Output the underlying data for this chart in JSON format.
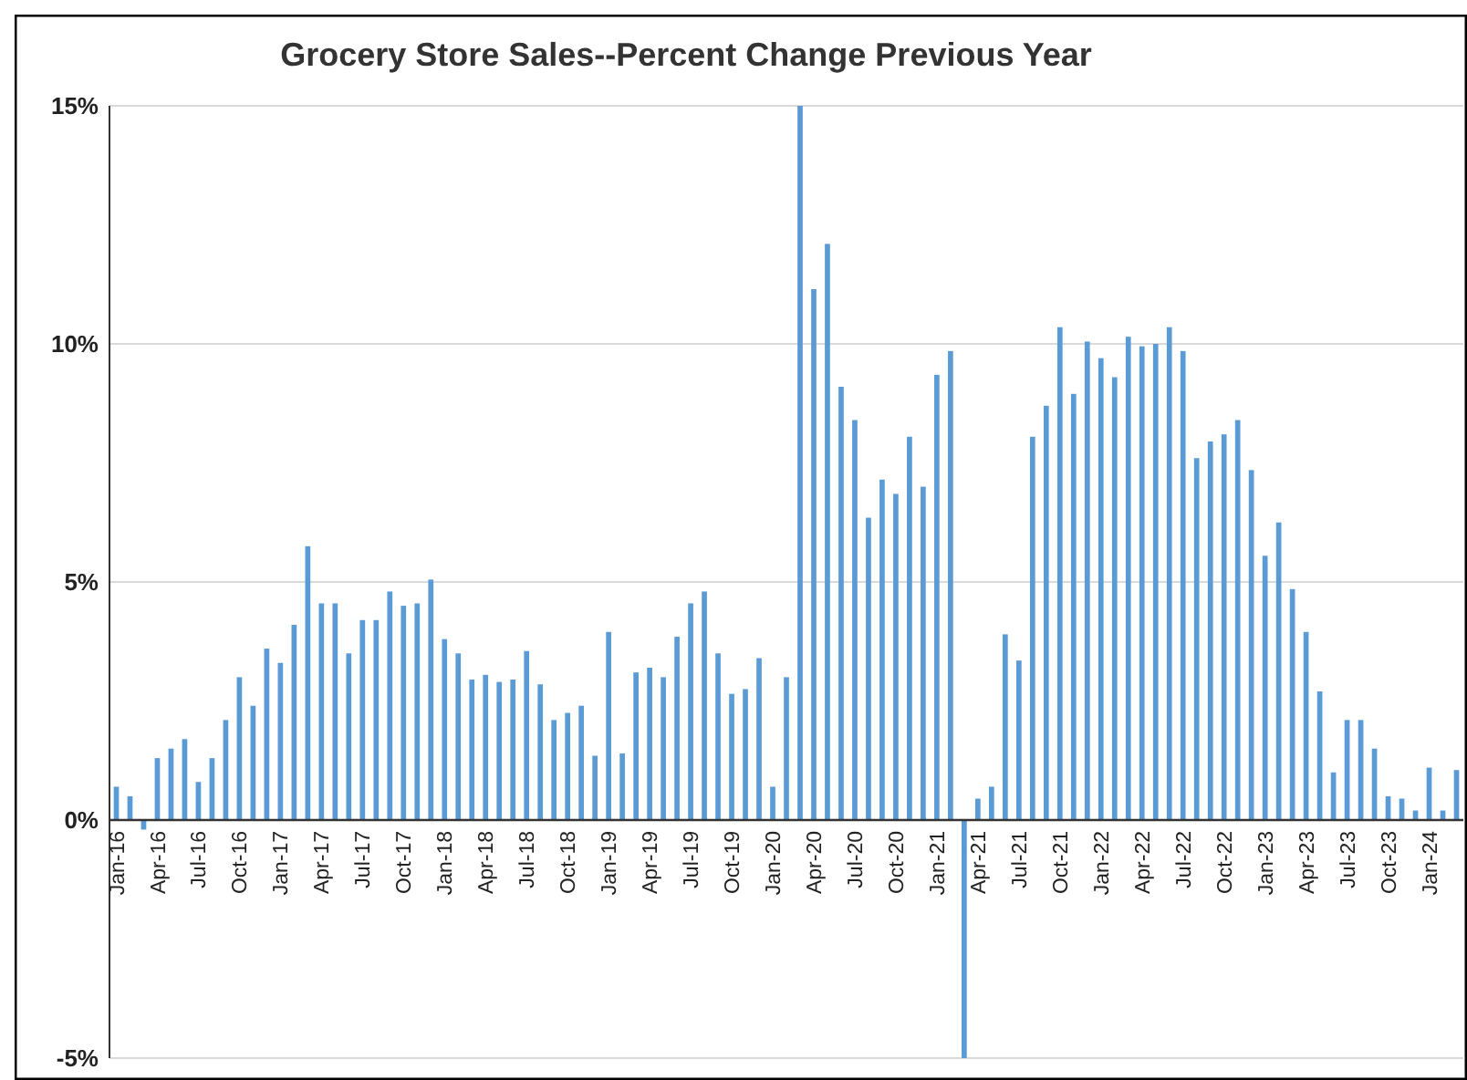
{
  "chart_data": {
    "type": "bar",
    "title": "Grocery Store Sales--Percent Change Previous Year",
    "categories": [
      "Jan-16",
      null,
      null,
      "Apr-16",
      null,
      null,
      "Jul-16",
      null,
      null,
      "Oct-16",
      null,
      null,
      "Jan-17",
      null,
      null,
      "Apr-17",
      null,
      null,
      "Jul-17",
      null,
      null,
      "Oct-17",
      null,
      null,
      "Jan-18",
      null,
      null,
      "Apr-18",
      null,
      null,
      "Jul-18",
      null,
      null,
      "Oct-18",
      null,
      null,
      "Jan-19",
      null,
      null,
      "Apr-19",
      null,
      null,
      "Jul-19",
      null,
      null,
      "Oct-19",
      null,
      null,
      "Jan-20",
      null,
      null,
      "Apr-20",
      null,
      null,
      "Jul-20",
      null,
      null,
      "Oct-20",
      null,
      null,
      "Jan-21",
      null,
      null,
      "Apr-21",
      null,
      null,
      "Jul-21",
      null,
      null,
      "Oct-21",
      null,
      null,
      "Jan-22",
      null,
      null,
      "Apr-22",
      null,
      null,
      "Jul-22",
      null,
      null,
      "Oct-22",
      null,
      null,
      "Jan-23",
      null,
      null,
      "Apr-23",
      null,
      null,
      "Jul-23",
      null,
      null,
      "Oct-23",
      null,
      null,
      "Jan-24",
      null,
      null
    ],
    "values": [
      0.7,
      0.5,
      -0.2,
      1.3,
      1.5,
      1.7,
      0.8,
      1.3,
      2.1,
      3.0,
      2.4,
      3.6,
      3.3,
      4.1,
      5.75,
      4.55,
      4.55,
      3.5,
      4.2,
      4.2,
      4.8,
      4.5,
      4.55,
      5.05,
      3.8,
      3.5,
      2.95,
      3.05,
      2.9,
      2.95,
      3.55,
      2.85,
      2.1,
      2.25,
      2.4,
      1.35,
      3.95,
      1.4,
      3.1,
      3.2,
      3.0,
      3.85,
      4.55,
      4.8,
      3.5,
      2.65,
      2.75,
      3.4,
      0.7,
      3.0,
      15,
      11.15,
      12.1,
      9.1,
      8.4,
      6.35,
      7.15,
      6.85,
      8.05,
      7.0,
      9.35,
      9.85,
      -5,
      0.45,
      0.7,
      3.9,
      3.35,
      8.05,
      8.7,
      10.35,
      8.95,
      10.05,
      9.7,
      9.3,
      10.15,
      9.95,
      10.0,
      10.35,
      9.85,
      7.6,
      7.95,
      8.1,
      8.4,
      7.35,
      5.55,
      6.25,
      4.85,
      3.95,
      2.7,
      1.0,
      2.1,
      2.1,
      1.5,
      0.5,
      0.45,
      0.2,
      1.1,
      0.2,
      1.05
    ],
    "color": "#5b9bd5",
    "ylim": [
      -5,
      15
    ],
    "yticks": [
      {
        "value": -5,
        "label": "-5%"
      },
      {
        "value": 0,
        "label": "0%"
      },
      {
        "value": 5,
        "label": "5%"
      },
      {
        "value": 10,
        "label": "10%"
      },
      {
        "value": 15,
        "label": "15%"
      }
    ],
    "grid": "y"
  }
}
